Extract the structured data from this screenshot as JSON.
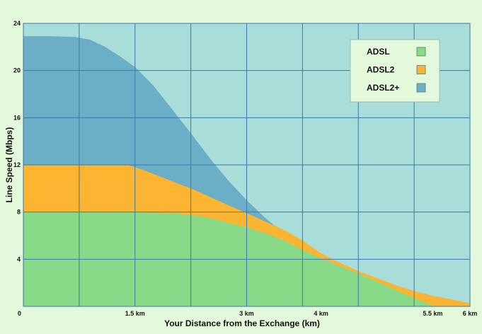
{
  "chart_data": {
    "type": "area",
    "title": "",
    "xlabel": "Your Distance from the Exchange (km)",
    "ylabel": "Line Speed (Mbps)",
    "xlim": [
      0,
      6
    ],
    "ylim": [
      0,
      24
    ],
    "x_ticks": [
      {
        "value": 0,
        "label": "0"
      },
      {
        "value": 1.5,
        "label": "1.5 km"
      },
      {
        "value": 3,
        "label": "3 km"
      },
      {
        "value": 4,
        "label": "4 km"
      },
      {
        "value": 5.5,
        "label": "5.5 km"
      },
      {
        "value": 6,
        "label": "6 km"
      }
    ],
    "y_ticks": [
      {
        "value": 0,
        "label": ""
      },
      {
        "value": 4,
        "label": "4"
      },
      {
        "value": 8,
        "label": "8"
      },
      {
        "value": 12,
        "label": "12"
      },
      {
        "value": 16,
        "label": "16"
      },
      {
        "value": 20,
        "label": "20"
      },
      {
        "value": 24,
        "label": "24"
      }
    ],
    "grid": true,
    "legend_position": "top-right",
    "background_color": "#a8ddd9",
    "page_color": "#e4f9dc",
    "series": [
      {
        "name": "ADSL2+",
        "color": "#6aafc6",
        "points": [
          [
            0,
            22.9
          ],
          [
            0.4,
            22.9
          ],
          [
            0.7,
            22.85
          ],
          [
            0.9,
            22.6
          ],
          [
            1.1,
            22.0
          ],
          [
            1.3,
            21.2
          ],
          [
            1.5,
            20.3
          ],
          [
            1.75,
            18.7
          ],
          [
            2.0,
            16.7
          ],
          [
            2.25,
            14.7
          ],
          [
            2.5,
            12.6
          ],
          [
            2.75,
            10.7
          ],
          [
            3.0,
            9.0
          ],
          [
            3.25,
            7.5
          ],
          [
            3.5,
            6.2
          ],
          [
            3.75,
            5.0
          ],
          [
            3.95,
            4.3
          ],
          [
            4.0,
            4.1
          ]
        ]
      },
      {
        "name": "ADSL2",
        "color": "#fbb532",
        "points": [
          [
            0,
            12.0
          ],
          [
            0.5,
            12.0
          ],
          [
            1.0,
            12.0
          ],
          [
            1.4,
            12.0
          ],
          [
            1.6,
            11.6
          ],
          [
            1.8,
            11.1
          ],
          [
            2.0,
            10.6
          ],
          [
            2.25,
            10.0
          ],
          [
            2.5,
            9.3
          ],
          [
            2.75,
            8.6
          ],
          [
            3.0,
            7.9
          ],
          [
            3.25,
            7.2
          ],
          [
            3.5,
            6.5
          ],
          [
            3.75,
            5.6
          ],
          [
            4.0,
            4.5
          ],
          [
            4.25,
            3.7
          ],
          [
            4.5,
            3.0
          ],
          [
            4.75,
            2.4
          ],
          [
            5.0,
            1.8
          ],
          [
            5.25,
            1.3
          ],
          [
            5.5,
            0.9
          ],
          [
            5.75,
            0.6
          ],
          [
            5.9,
            0.4
          ],
          [
            6.0,
            0.25
          ]
        ]
      },
      {
        "name": "ADSL",
        "color": "#88da88",
        "points": [
          [
            0,
            8.0
          ],
          [
            0.5,
            8.0
          ],
          [
            1.0,
            8.0
          ],
          [
            1.5,
            8.0
          ],
          [
            2.0,
            7.9
          ],
          [
            2.25,
            7.75
          ],
          [
            2.5,
            7.5
          ],
          [
            2.75,
            7.1
          ],
          [
            3.0,
            6.7
          ],
          [
            3.25,
            6.2
          ],
          [
            3.5,
            5.6
          ],
          [
            3.75,
            4.8
          ],
          [
            4.0,
            4.1
          ],
          [
            4.25,
            3.4
          ],
          [
            4.5,
            2.8
          ],
          [
            4.75,
            2.1
          ],
          [
            5.0,
            1.4
          ],
          [
            5.25,
            0.7
          ],
          [
            5.4,
            0.3
          ],
          [
            5.5,
            0.05
          ]
        ]
      }
    ],
    "legend": [
      {
        "label": "ADSL",
        "color": "#88da88"
      },
      {
        "label": "ADSL2",
        "color": "#fbb532"
      },
      {
        "label": "ADSL2+",
        "color": "#6aafc6"
      }
    ]
  }
}
